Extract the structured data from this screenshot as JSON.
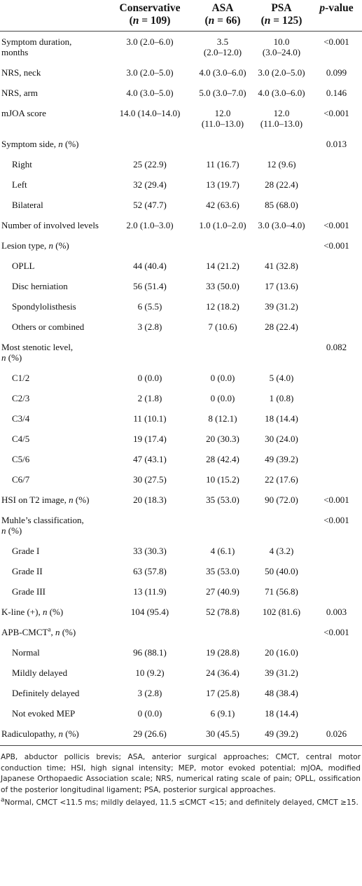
{
  "table": {
    "columns": [
      {
        "name": "Conservative",
        "n": "(n = 109)"
      },
      {
        "name": "ASA",
        "n": "(n = 66)"
      },
      {
        "name": "PSA",
        "n": "(n = 125)"
      },
      {
        "name": "p-value"
      }
    ],
    "rows": [
      {
        "label": [
          "Symptom duration,",
          "months"
        ],
        "cells": [
          "3.0 (2.0–6.0)",
          [
            "3.5",
            "(2.0–12.0)"
          ],
          [
            "10.0",
            "(3.0–24.0)"
          ],
          "<0.001"
        ]
      },
      {
        "label": "NRS, neck",
        "cells": [
          "3.0 (2.0–5.0)",
          "4.0 (3.0–6.0)",
          "3.0 (2.0–5.0)",
          "0.099"
        ]
      },
      {
        "label": "NRS, arm",
        "cells": [
          "4.0 (3.0–5.0)",
          "5.0 (3.0–7.0)",
          "4.0 (3.0–6.0)",
          "0.146"
        ]
      },
      {
        "label": "mJOA score",
        "cells": [
          "14.0 (14.0–14.0)",
          [
            "12.0",
            "(11.0–13.0)"
          ],
          [
            "12.0",
            "(11.0–13.0)"
          ],
          "<0.001"
        ]
      },
      {
        "label": "Symptom side, n (%)",
        "cells": [
          "",
          "",
          "",
          "0.013"
        ]
      },
      {
        "label": "Right",
        "indent": true,
        "cells": [
          "25 (22.9)",
          "11 (16.7)",
          "12 (9.6)",
          ""
        ]
      },
      {
        "label": "Left",
        "indent": true,
        "cells": [
          "32 (29.4)",
          "13 (19.7)",
          "28 (22.4)",
          ""
        ]
      },
      {
        "label": "Bilateral",
        "indent": true,
        "cells": [
          "52 (47.7)",
          "42 (63.6)",
          "85 (68.0)",
          ""
        ]
      },
      {
        "label": "Number of involved levels",
        "cells": [
          "2.0 (1.0–3.0)",
          "1.0 (1.0–2.0)",
          "3.0 (3.0–4.0)",
          "<0.001"
        ]
      },
      {
        "label": "Lesion type, n (%)",
        "cells": [
          "",
          "",
          "",
          "<0.001"
        ]
      },
      {
        "label": "OPLL",
        "indent": true,
        "cells": [
          "44 (40.4)",
          "14 (21.2)",
          "41 (32.8)",
          ""
        ]
      },
      {
        "label": "Disc herniation",
        "indent": true,
        "cells": [
          "56 (51.4)",
          "33 (50.0)",
          "17 (13.6)",
          ""
        ]
      },
      {
        "label": "Spondylolisthesis",
        "indent": true,
        "cells": [
          "6 (5.5)",
          "12 (18.2)",
          "39 (31.2)",
          ""
        ]
      },
      {
        "label": "Others or combined",
        "indent": true,
        "cells": [
          "3 (2.8)",
          "7 (10.6)",
          "28 (22.4)",
          ""
        ]
      },
      {
        "label": [
          "Most stenotic level,",
          "n (%)"
        ],
        "cells": [
          "",
          "",
          "",
          "0.082"
        ]
      },
      {
        "label": "C1/2",
        "indent": true,
        "cells": [
          "0 (0.0)",
          "0 (0.0)",
          "5 (4.0)",
          ""
        ]
      },
      {
        "label": "C2/3",
        "indent": true,
        "cells": [
          "2 (1.8)",
          "0 (0.0)",
          "1 (0.8)",
          ""
        ]
      },
      {
        "label": "C3/4",
        "indent": true,
        "cells": [
          "11 (10.1)",
          "8 (12.1)",
          "18 (14.4)",
          ""
        ]
      },
      {
        "label": "C4/5",
        "indent": true,
        "cells": [
          "19 (17.4)",
          "20 (30.3)",
          "30 (24.0)",
          ""
        ]
      },
      {
        "label": "C5/6",
        "indent": true,
        "cells": [
          "47 (43.1)",
          "28 (42.4)",
          "49 (39.2)",
          ""
        ]
      },
      {
        "label": "C6/7",
        "indent": true,
        "cells": [
          "30 (27.5)",
          "10 (15.2)",
          "22 (17.6)",
          ""
        ]
      },
      {
        "label": "HSI on T2 image, n (%)",
        "cells": [
          "20 (18.3)",
          "35 (53.0)",
          "90 (72.0)",
          "<0.001"
        ]
      },
      {
        "label": [
          "Muhle’s classification,",
          "n (%)"
        ],
        "cells": [
          "",
          "",
          "",
          "<0.001"
        ]
      },
      {
        "label": "Grade I",
        "indent": true,
        "cells": [
          "33 (30.3)",
          "4 (6.1)",
          "4 (3.2)",
          ""
        ]
      },
      {
        "label": "Grade II",
        "indent": true,
        "cells": [
          "63 (57.8)",
          "35 (53.0)",
          "50 (40.0)",
          ""
        ]
      },
      {
        "label": "Grade III",
        "indent": true,
        "cells": [
          "13 (11.9)",
          "27 (40.9)",
          "71 (56.8)",
          ""
        ]
      },
      {
        "label": "K-line (+), n (%)",
        "cells": [
          "104 (95.4)",
          "52 (78.8)",
          "102 (81.6)",
          "0.003"
        ]
      },
      {
        "label": "APB-CMCT",
        "label_sup": "a",
        "label_after": ", n (%)",
        "cells": [
          "",
          "",
          "",
          "<0.001"
        ]
      },
      {
        "label": "Normal",
        "indent": true,
        "cells": [
          "96 (88.1)",
          "19 (28.8)",
          "20 (16.0)",
          ""
        ]
      },
      {
        "label": "Mildly delayed",
        "indent": true,
        "cells": [
          "10 (9.2)",
          "24 (36.4)",
          "39 (31.2)",
          ""
        ]
      },
      {
        "label": "Definitely delayed",
        "indent": true,
        "cells": [
          "3 (2.8)",
          "17 (25.8)",
          "48 (38.4)",
          ""
        ]
      },
      {
        "label": "Not evoked MEP",
        "indent": true,
        "cells": [
          "0 (0.0)",
          "6 (9.1)",
          "18 (14.4)",
          ""
        ]
      },
      {
        "label": "Radiculopathy, n (%)",
        "cells": [
          "29 (26.6)",
          "30 (45.5)",
          "49 (39.2)",
          "0.026"
        ]
      }
    ]
  },
  "footnotes": [
    {
      "text": "APB, abductor pollicis brevis; ASA, anterior surgical approaches; CMCT, central motor conduction time; HSI, high signal intensity; MEP, motor evoked potential; mJOA, modified Japanese Orthopaedic Association scale; NRS, numerical rating scale of pain; OPLL, ossification of the posterior longitudinal ligament; PSA, posterior surgical approaches."
    },
    {
      "marker": "a",
      "text": "Normal, CMCT <11.5 ms; mildly delayed, 11.5 ≤CMCT <15; and definitely delayed, CMCT ≥15."
    }
  ]
}
